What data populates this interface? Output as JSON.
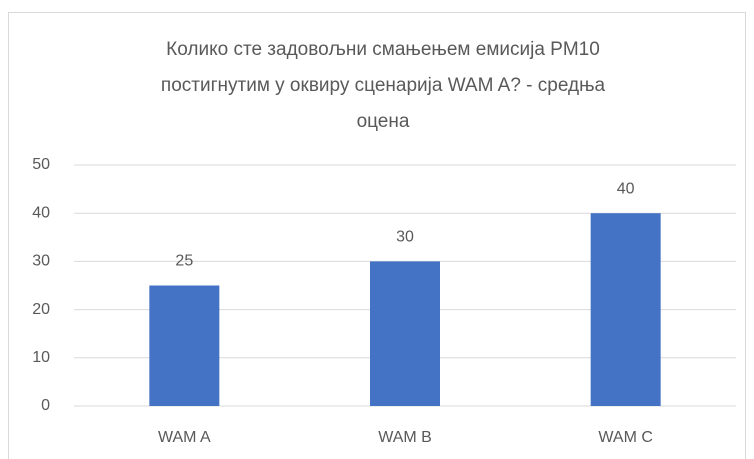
{
  "chart_data": {
    "type": "bar",
    "title": "Колико сте задовољни смањењем емисија PM10 постигнутим у оквиру сценарија WAM A? - средња оцена",
    "categories": [
      "WAM A",
      "WAM B",
      "WAM C"
    ],
    "values": [
      25,
      30,
      40
    ],
    "color": "#4472c4",
    "ylim": [
      0,
      50
    ],
    "yticks": [
      0,
      10,
      20,
      30,
      40,
      50
    ],
    "grid": true,
    "data_labels": true
  }
}
